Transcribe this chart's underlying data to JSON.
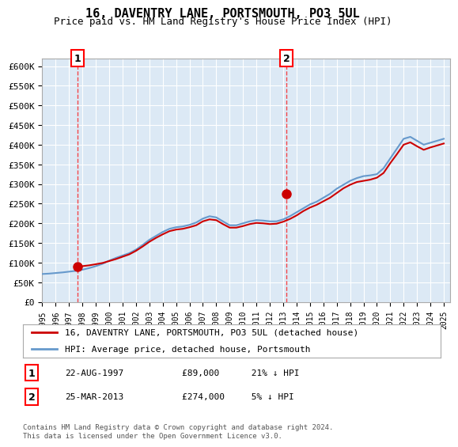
{
  "title1": "16, DAVENTRY LANE, PORTSMOUTH, PO3 5UL",
  "title2": "Price paid vs. HM Land Registry's House Price Index (HPI)",
  "background_color": "#dce9f5",
  "plot_bg_color": "#dce9f5",
  "ylim": [
    0,
    620000
  ],
  "yticks": [
    0,
    50000,
    100000,
    150000,
    200000,
    250000,
    300000,
    350000,
    400000,
    450000,
    500000,
    550000,
    600000
  ],
  "ytick_labels": [
    "£0",
    "£50K",
    "£100K",
    "£150K",
    "£200K",
    "£250K",
    "£300K",
    "£350K",
    "£400K",
    "£450K",
    "£500K",
    "£550K",
    "£600K"
  ],
  "sale1_year": 1997.65,
  "sale1_price": 89000,
  "sale1_label": "1",
  "sale1_date": "22-AUG-1997",
  "sale1_info": "£89,000    21% ↓ HPI",
  "sale2_year": 2013.23,
  "sale2_price": 274000,
  "sale2_label": "2",
  "sale2_date": "25-MAR-2013",
  "sale2_info": "£274,000    5% ↓ HPI",
  "legend_label1": "16, DAVENTRY LANE, PORTSMOUTH, PO3 5UL (detached house)",
  "legend_label2": "HPI: Average price, detached house, Portsmouth",
  "footer": "Contains HM Land Registry data © Crown copyright and database right 2024.\nThis data is licensed under the Open Government Licence v3.0.",
  "line_color_red": "#cc0000",
  "line_color_blue": "#6699cc",
  "hpi_years": [
    1995,
    1995.5,
    1996,
    1996.5,
    1997,
    1997.5,
    1998,
    1998.5,
    1999,
    1999.5,
    2000,
    2000.5,
    2001,
    2001.5,
    2002,
    2002.5,
    2003,
    2003.5,
    2004,
    2004.5,
    2005,
    2005.5,
    2006,
    2006.5,
    2007,
    2007.5,
    2008,
    2008.5,
    2009,
    2009.5,
    2010,
    2010.5,
    2011,
    2011.5,
    2012,
    2012.5,
    2013,
    2013.5,
    2014,
    2014.5,
    2015,
    2015.5,
    2016,
    2016.5,
    2017,
    2017.5,
    2018,
    2018.5,
    2019,
    2019.5,
    2020,
    2020.5,
    2021,
    2021.5,
    2022,
    2022.5,
    2023,
    2023.5,
    2024,
    2024.5,
    2025
  ],
  "hpi_values": [
    71000,
    72000,
    73500,
    75000,
    77000,
    79000,
    82000,
    86000,
    91000,
    97000,
    105000,
    112000,
    118000,
    124000,
    133000,
    145000,
    158000,
    168000,
    178000,
    186000,
    190000,
    192000,
    196000,
    202000,
    212000,
    218000,
    215000,
    205000,
    195000,
    195000,
    200000,
    205000,
    208000,
    207000,
    205000,
    205000,
    210000,
    218000,
    228000,
    238000,
    248000,
    255000,
    265000,
    275000,
    288000,
    298000,
    308000,
    315000,
    320000,
    322000,
    325000,
    340000,
    365000,
    390000,
    415000,
    420000,
    410000,
    400000,
    405000,
    410000,
    415000
  ],
  "sold_years": [
    1995,
    1995.5,
    1996,
    1996.5,
    1997,
    1997.5,
    1998,
    1998.5,
    1999,
    1999.5,
    2000,
    2000.5,
    2001,
    2001.5,
    2002,
    2002.5,
    2003,
    2003.5,
    2004,
    2004.5,
    2005,
    2005.5,
    2006,
    2006.5,
    2007,
    2007.5,
    2008,
    2008.5,
    2009,
    2009.5,
    2010,
    2010.5,
    2011,
    2011.5,
    2012,
    2012.5,
    2013,
    2013.5,
    2014,
    2014.5,
    2015,
    2015.5,
    2016,
    2016.5,
    2017,
    2017.5,
    2018,
    2018.5,
    2019,
    2019.5,
    2020,
    2020.5,
    2021,
    2021.5,
    2022,
    2022.5,
    2023,
    2023.5,
    2024,
    2024.5,
    2025
  ],
  "sold_values": [
    null,
    null,
    null,
    null,
    null,
    89000,
    91000,
    93000,
    96000,
    99000,
    104000,
    109000,
    115000,
    121000,
    130000,
    141000,
    153000,
    163000,
    172000,
    180000,
    184000,
    186000,
    190000,
    195000,
    205000,
    210000,
    208000,
    198000,
    189000,
    189000,
    193000,
    198000,
    201000,
    200000,
    198000,
    199000,
    204000,
    211000,
    220000,
    231000,
    240000,
    247000,
    256000,
    265000,
    277000,
    289000,
    298000,
    305000,
    308000,
    311000,
    316000,
    328000,
    353000,
    376000,
    400000,
    406000,
    396000,
    387000,
    393000,
    398000,
    403000
  ]
}
